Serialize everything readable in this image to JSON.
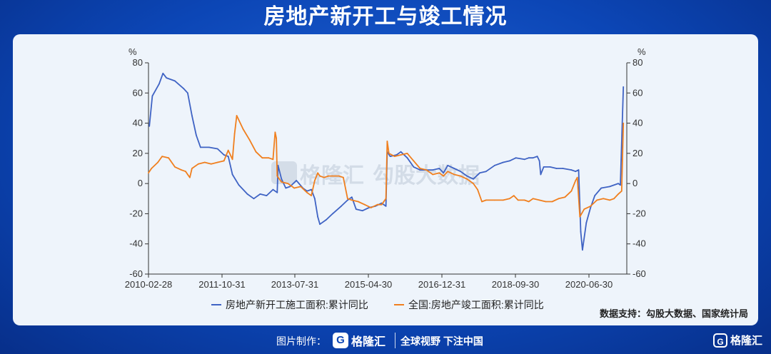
{
  "title": "房地产新开工与竣工情况",
  "footer": {
    "made_by_label": "图片制作：",
    "logo_text": "格隆汇",
    "logo_mark": "G",
    "slogan": "全球视野 下注中国"
  },
  "corner_logo": {
    "mark": "G",
    "text": "格隆汇"
  },
  "watermark": {
    "left": "格隆汇",
    "right": "勾股大数据"
  },
  "source": "数据支持：勾股大数据、国家统计局",
  "chart_data": {
    "type": "line",
    "x_ticks": [
      "2010-02-28",
      "2011-10-31",
      "2013-07-31",
      "2015-04-30",
      "2016-12-31",
      "2018-09-30",
      "2020-06-30"
    ],
    "x_range": [
      2010.08,
      2021.3
    ],
    "ylim": [
      -60,
      80
    ],
    "y_ticks": [
      -60,
      -40,
      -20,
      0,
      20,
      40,
      60,
      80
    ],
    "left_unit": "%",
    "right_unit": "%",
    "grid": false,
    "legend_placement": "bottom",
    "series": [
      {
        "name": "房地产新开工施工面积:累计同比",
        "color": "#3f63c4",
        "axis": "left",
        "points": [
          [
            2010.1,
            38
          ],
          [
            2010.17,
            58
          ],
          [
            2010.33,
            66
          ],
          [
            2010.42,
            73
          ],
          [
            2010.5,
            70
          ],
          [
            2010.7,
            68
          ],
          [
            2010.9,
            63
          ],
          [
            2011.0,
            60
          ],
          [
            2011.1,
            45
          ],
          [
            2011.2,
            32
          ],
          [
            2011.3,
            24
          ],
          [
            2011.5,
            24
          ],
          [
            2011.7,
            23
          ],
          [
            2011.85,
            19
          ],
          [
            2011.95,
            18
          ],
          [
            2012.05,
            6
          ],
          [
            2012.2,
            -1
          ],
          [
            2012.4,
            -7
          ],
          [
            2012.55,
            -10
          ],
          [
            2012.7,
            -7
          ],
          [
            2012.85,
            -8
          ],
          [
            2013.0,
            -4
          ],
          [
            2013.1,
            -6
          ],
          [
            2013.12,
            12
          ],
          [
            2013.2,
            3
          ],
          [
            2013.3,
            -3
          ],
          [
            2013.4,
            -2
          ],
          [
            2013.55,
            2
          ],
          [
            2013.7,
            -3
          ],
          [
            2013.8,
            -5
          ],
          [
            2013.9,
            -4
          ],
          [
            2013.98,
            -10
          ],
          [
            2014.05,
            -22
          ],
          [
            2014.1,
            -27
          ],
          [
            2014.25,
            -24
          ],
          [
            2014.4,
            -20
          ],
          [
            2014.6,
            -15
          ],
          [
            2014.75,
            -11
          ],
          [
            2014.85,
            -9
          ],
          [
            2014.95,
            -17
          ],
          [
            2015.1,
            -18
          ],
          [
            2015.25,
            -16
          ],
          [
            2015.4,
            -15
          ],
          [
            2015.55,
            -13
          ],
          [
            2015.65,
            -15
          ],
          [
            2015.68,
            21
          ],
          [
            2015.75,
            18
          ],
          [
            2015.9,
            19
          ],
          [
            2016.0,
            21
          ],
          [
            2016.15,
            17
          ],
          [
            2016.3,
            11
          ],
          [
            2016.45,
            9
          ],
          [
            2016.6,
            9
          ],
          [
            2016.75,
            9
          ],
          [
            2016.9,
            10
          ],
          [
            2017.0,
            7
          ],
          [
            2017.1,
            12
          ],
          [
            2017.25,
            10
          ],
          [
            2017.4,
            8
          ],
          [
            2017.55,
            5
          ],
          [
            2017.7,
            3
          ],
          [
            2017.85,
            7
          ],
          [
            2018.0,
            8
          ],
          [
            2018.2,
            12
          ],
          [
            2018.4,
            14
          ],
          [
            2018.55,
            15
          ],
          [
            2018.7,
            17
          ],
          [
            2018.9,
            16
          ],
          [
            2019.0,
            17
          ],
          [
            2019.1,
            17
          ],
          [
            2019.2,
            18
          ],
          [
            2019.25,
            15
          ],
          [
            2019.28,
            6
          ],
          [
            2019.35,
            11
          ],
          [
            2019.5,
            11
          ],
          [
            2019.65,
            10
          ],
          [
            2019.8,
            10
          ],
          [
            2020.0,
            9
          ],
          [
            2020.1,
            8
          ],
          [
            2020.17,
            9
          ],
          [
            2020.22,
            -32
          ],
          [
            2020.26,
            -44
          ],
          [
            2020.35,
            -26
          ],
          [
            2020.45,
            -16
          ],
          [
            2020.55,
            -8
          ],
          [
            2020.7,
            -3
          ],
          [
            2020.9,
            -2
          ],
          [
            2021.1,
            0
          ],
          [
            2021.15,
            -1
          ],
          [
            2021.22,
            64
          ]
        ]
      },
      {
        "name": "全国:房地产竣工面积:累计同比",
        "color": "#f07f1e",
        "axis": "right",
        "points": [
          [
            2010.08,
            7
          ],
          [
            2010.15,
            10
          ],
          [
            2010.3,
            14
          ],
          [
            2010.4,
            18
          ],
          [
            2010.55,
            17
          ],
          [
            2010.7,
            11
          ],
          [
            2010.85,
            9
          ],
          [
            2010.95,
            8
          ],
          [
            2011.0,
            6
          ],
          [
            2011.05,
            4
          ],
          [
            2011.1,
            10
          ],
          [
            2011.25,
            13
          ],
          [
            2011.4,
            14
          ],
          [
            2011.55,
            13
          ],
          [
            2011.7,
            14
          ],
          [
            2011.85,
            15
          ],
          [
            2011.95,
            22
          ],
          [
            2012.05,
            16
          ],
          [
            2012.1,
            33
          ],
          [
            2012.15,
            45
          ],
          [
            2012.3,
            36
          ],
          [
            2012.45,
            29
          ],
          [
            2012.6,
            21
          ],
          [
            2012.75,
            17
          ],
          [
            2012.9,
            17
          ],
          [
            2013.0,
            16
          ],
          [
            2013.05,
            34
          ],
          [
            2013.08,
            30
          ],
          [
            2013.1,
            5
          ],
          [
            2013.2,
            1
          ],
          [
            2013.35,
            0
          ],
          [
            2013.5,
            -3
          ],
          [
            2013.65,
            -2
          ],
          [
            2013.8,
            -6
          ],
          [
            2013.9,
            -8
          ],
          [
            2013.98,
            2
          ],
          [
            2014.05,
            7
          ],
          [
            2014.1,
            5
          ],
          [
            2014.2,
            4
          ],
          [
            2014.3,
            5
          ],
          [
            2014.4,
            5
          ],
          [
            2014.55,
            5
          ],
          [
            2014.65,
            4
          ],
          [
            2014.75,
            -10
          ],
          [
            2014.85,
            -11
          ],
          [
            2015.0,
            -12
          ],
          [
            2015.15,
            -14
          ],
          [
            2015.3,
            -16
          ],
          [
            2015.45,
            -14
          ],
          [
            2015.55,
            -14
          ],
          [
            2015.65,
            -10
          ],
          [
            2015.68,
            28
          ],
          [
            2015.72,
            20
          ],
          [
            2015.85,
            18
          ],
          [
            2016.0,
            19
          ],
          [
            2016.15,
            20
          ],
          [
            2016.3,
            15
          ],
          [
            2016.45,
            10
          ],
          [
            2016.6,
            9
          ],
          [
            2016.75,
            6
          ],
          [
            2016.9,
            7
          ],
          [
            2017.0,
            5
          ],
          [
            2017.1,
            8
          ],
          [
            2017.25,
            6
          ],
          [
            2017.4,
            5
          ],
          [
            2017.55,
            3
          ],
          [
            2017.7,
            0
          ],
          [
            2017.8,
            -4
          ],
          [
            2017.9,
            -12
          ],
          [
            2018.0,
            -11
          ],
          [
            2018.2,
            -11
          ],
          [
            2018.4,
            -11
          ],
          [
            2018.55,
            -10
          ],
          [
            2018.65,
            -8
          ],
          [
            2018.75,
            -11
          ],
          [
            2018.9,
            -11
          ],
          [
            2019.0,
            -12
          ],
          [
            2019.1,
            -10
          ],
          [
            2019.25,
            -11
          ],
          [
            2019.4,
            -12
          ],
          [
            2019.55,
            -12
          ],
          [
            2019.7,
            -10
          ],
          [
            2019.85,
            -9
          ],
          [
            2020.0,
            -5
          ],
          [
            2020.1,
            2
          ],
          [
            2020.14,
            4
          ],
          [
            2020.2,
            -22
          ],
          [
            2020.3,
            -17
          ],
          [
            2020.45,
            -15
          ],
          [
            2020.6,
            -11
          ],
          [
            2020.75,
            -10
          ],
          [
            2020.9,
            -11
          ],
          [
            2021.0,
            -10
          ],
          [
            2021.1,
            -7
          ],
          [
            2021.18,
            -5
          ],
          [
            2021.22,
            40
          ]
        ]
      }
    ]
  }
}
